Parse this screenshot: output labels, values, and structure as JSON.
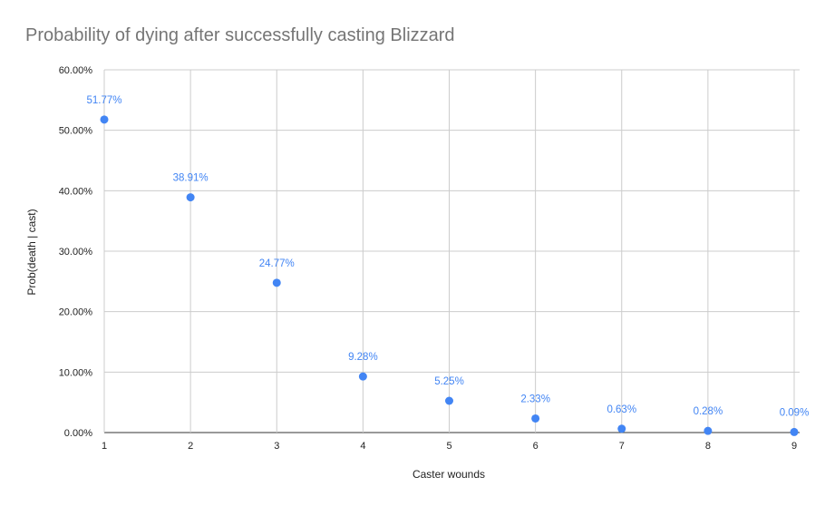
{
  "chart_data": {
    "type": "scatter",
    "title": "Probability of dying after successfully casting Blizzard",
    "xlabel": "Caster wounds",
    "ylabel": "Prob(death | cast)",
    "x": [
      1,
      2,
      3,
      4,
      5,
      6,
      7,
      8,
      9
    ],
    "y": [
      51.77,
      38.91,
      24.77,
      9.28,
      5.25,
      2.33,
      0.63,
      0.28,
      0.09
    ],
    "data_labels": [
      "51.77%",
      "38.91%",
      "24.77%",
      "9.28%",
      "5.25%",
      "2.33%",
      "0.63%",
      "0.28%",
      "0.09%"
    ],
    "xticks": [
      "1",
      "2",
      "3",
      "4",
      "5",
      "6",
      "7",
      "8",
      "9"
    ],
    "yticks": [
      "0.00%",
      "10.00%",
      "20.00%",
      "30.00%",
      "40.00%",
      "50.00%",
      "60.00%"
    ],
    "ylim": [
      0,
      60
    ],
    "xlim": [
      1,
      9
    ],
    "grid": true,
    "legend": "none",
    "colors": {
      "series": "#4285f4",
      "grid": "#cccccc",
      "title": "#757575",
      "text": "#222222"
    }
  }
}
